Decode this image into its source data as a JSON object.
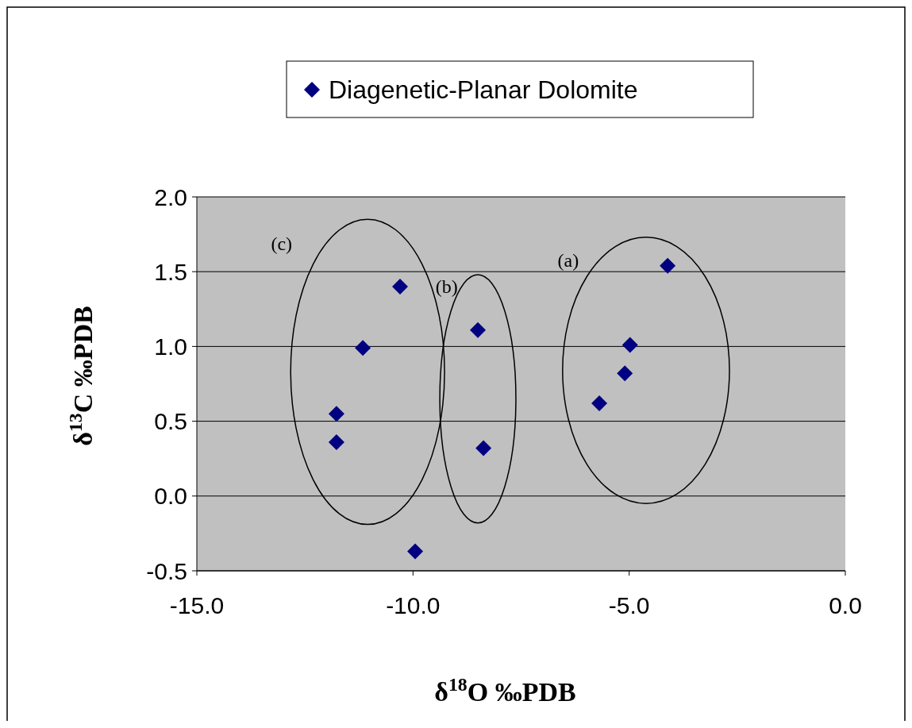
{
  "chart_data": {
    "type": "scatter",
    "xlabel": "δ$^{18}$O ‰PDB",
    "ylabel": "δ$^{13}$C ‰PDB",
    "series": [
      {
        "name": "Diagenetic-Planar Dolomite",
        "color": "#000080",
        "x": [
          -4.11,
          -4.98,
          -5.1,
          -5.69,
          -8.5,
          -8.37,
          -10.3,
          -11.16,
          -11.77,
          -11.77,
          -9.95
        ],
        "values": [
          1.54,
          1.01,
          0.82,
          0.62,
          1.11,
          0.32,
          1.4,
          0.99,
          0.55,
          0.36,
          -0.37
        ]
      }
    ],
    "xlim": [
      -15,
      0
    ],
    "xticks": [
      {
        "value": -15,
        "label": "-15.0"
      },
      {
        "value": -10,
        "label": "-10.0"
      },
      {
        "value": -5,
        "label": "-5.0"
      },
      {
        "value": 0,
        "label": "0.0"
      }
    ],
    "ylim": [
      -0.5,
      2
    ],
    "yticks": [
      {
        "value": -0.5,
        "label": "-0.5"
      },
      {
        "value": 0,
        "label": "0.0"
      },
      {
        "value": 0.5,
        "label": "0.5"
      },
      {
        "value": 1,
        "label": "1.0"
      },
      {
        "value": 1.5,
        "label": "1.5"
      },
      {
        "value": 2,
        "label": "2.0"
      }
    ],
    "annotations": [
      "(a)",
      "(b)",
      "(c)"
    ],
    "grid": "y",
    "legend": "top",
    "marker": "diamond"
  }
}
